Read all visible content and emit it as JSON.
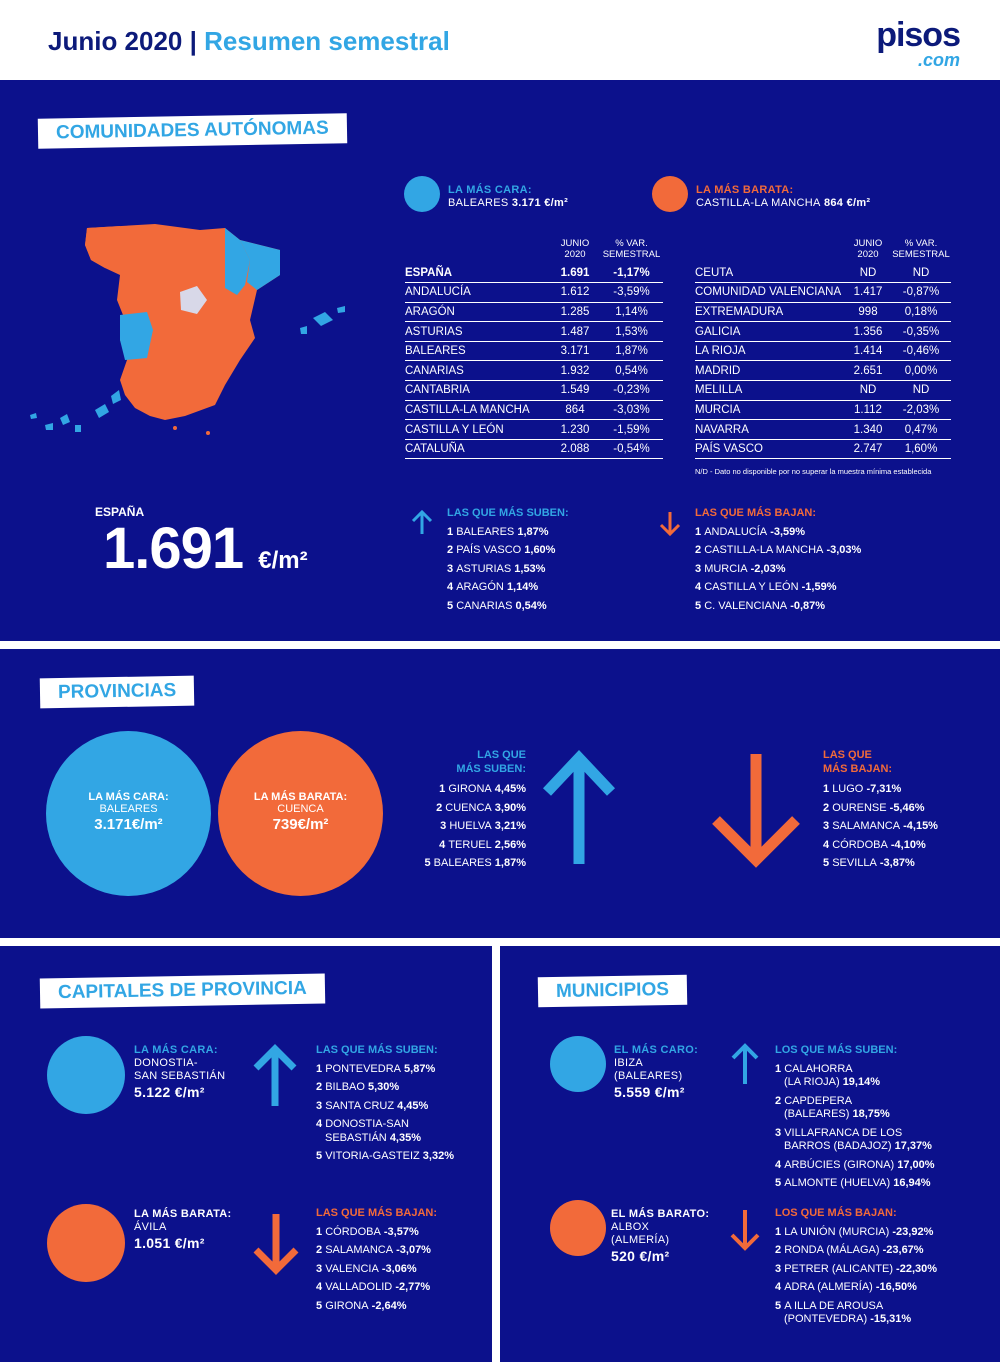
{
  "header": {
    "title": "Junio 2020 | ",
    "subtitle": "Resumen semestral",
    "logo_main": "pisos",
    "logo_sub": ".com"
  },
  "colors": {
    "navy": "#0c118c",
    "blue": "#32a6e4",
    "orange": "#f26a3a"
  },
  "comunidades": {
    "section_title": "COMUNIDADES AUTÓNOMAS",
    "cara_label": "LA MÁS CARA:",
    "cara_name": "BALEARES",
    "cara_value": "3.171 €/m²",
    "barata_label": "LA MÁS BARATA:",
    "barata_name": "CASTILLA-LA MANCHA",
    "barata_value": "864 €/m²",
    "col_headers": [
      "JUNIO 2020",
      "% VAR. SEMESTRAL"
    ],
    "table_left": [
      {
        "name": "ESPAÑA",
        "value": "1.691",
        "var": "-1,17%"
      },
      {
        "name": "ANDALUCÍA",
        "value": "1.612",
        "var": "-3,59%"
      },
      {
        "name": "ARAGÓN",
        "value": "1.285",
        "var": "1,14%"
      },
      {
        "name": "ASTURIAS",
        "value": "1.487",
        "var": "1,53%"
      },
      {
        "name": "BALEARES",
        "value": "3.171",
        "var": "1,87%"
      },
      {
        "name": "CANARIAS",
        "value": "1.932",
        "var": "0,54%"
      },
      {
        "name": "CANTABRIA",
        "value": "1.549",
        "var": "-0,23%"
      },
      {
        "name": "CASTILLA-LA MANCHA",
        "value": "864",
        "var": "-3,03%"
      },
      {
        "name": "CASTILLA Y LEÓN",
        "value": "1.230",
        "var": "-1,59%"
      },
      {
        "name": "CATALUÑA",
        "value": "2.088",
        "var": "-0,54%"
      }
    ],
    "table_right": [
      {
        "name": "CEUTA",
        "value": "ND",
        "var": "ND"
      },
      {
        "name": "COMUNIDAD VALENCIANA",
        "value": "1.417",
        "var": "-0,87%"
      },
      {
        "name": "EXTREMADURA",
        "value": "998",
        "var": "0,18%"
      },
      {
        "name": "GALICIA",
        "value": "1.356",
        "var": "-0,35%"
      },
      {
        "name": "LA RIOJA",
        "value": "1.414",
        "var": "-0,46%"
      },
      {
        "name": "MADRID",
        "value": "2.651",
        "var": "0,00%"
      },
      {
        "name": "MELILLA",
        "value": "ND",
        "var": "ND"
      },
      {
        "name": "MURCIA",
        "value": "1.112",
        "var": "-2,03%"
      },
      {
        "name": "NAVARRA",
        "value": "1.340",
        "var": "0,47%"
      },
      {
        "name": "PAÍS VASCO",
        "value": "2.747",
        "var": "1,60%"
      }
    ],
    "note": "N/D - Dato no disponible por no superar la muestra mínima establecida",
    "espana_label": "ESPAÑA",
    "espana_value": "1.691",
    "espana_unit": "€/m²",
    "suben_title": "LAS QUE MÁS SUBEN:",
    "suben": [
      {
        "rank": "1",
        "name": "BALEARES",
        "val": "1,87%"
      },
      {
        "rank": "2",
        "name": "PAÍS VASCO",
        "val": "1,60%"
      },
      {
        "rank": "3",
        "name": "ASTURIAS",
        "val": "1,53%"
      },
      {
        "rank": "4",
        "name": "ARAGÓN",
        "val": "1,14%"
      },
      {
        "rank": "5",
        "name": "CANARIAS",
        "val": "0,54%"
      }
    ],
    "bajan_title": "LAS QUE MÁS BAJAN:",
    "bajan": [
      {
        "rank": "1",
        "name": "ANDALUCÍA",
        "val": "-3,59%"
      },
      {
        "rank": "2",
        "name": "CASTILLA-LA MANCHA",
        "val": "-3,03%"
      },
      {
        "rank": "3",
        "name": "MURCIA",
        "val": "-2,03%"
      },
      {
        "rank": "4",
        "name": "CASTILLA Y LEÓN",
        "val": "-1,59%"
      },
      {
        "rank": "5",
        "name": "C. VALENCIANA",
        "val": "-0,87%"
      }
    ]
  },
  "provincias": {
    "section_title": "PROVINCIAS",
    "cara_label": "LA MÁS CARA:",
    "cara_name": "BALEARES",
    "cara_value": "3.171€/m²",
    "barata_label": "LA MÁS BARATA:",
    "barata_name": "CUENCA",
    "barata_value": "739€/m²",
    "suben_title_1": "LAS QUE",
    "suben_title_2": "MÁS SUBEN:",
    "suben": [
      {
        "rank": "1",
        "name": "GIRONA",
        "val": "4,45%"
      },
      {
        "rank": "2",
        "name": "CUENCA",
        "val": "3,90%"
      },
      {
        "rank": "3",
        "name": "HUELVA",
        "val": "3,21%"
      },
      {
        "rank": "4",
        "name": "TERUEL",
        "val": "2,56%"
      },
      {
        "rank": "5",
        "name": "BALEARES",
        "val": "1,87%"
      }
    ],
    "bajan_title_1": "LAS QUE",
    "bajan_title_2": "MÁS BAJAN:",
    "bajan": [
      {
        "rank": "1",
        "name": "LUGO",
        "val": "-7,31%"
      },
      {
        "rank": "2",
        "name": "OURENSE",
        "val": "-5,46%"
      },
      {
        "rank": "3",
        "name": "SALAMANCA",
        "val": "-4,15%"
      },
      {
        "rank": "4",
        "name": "CÓRDOBA",
        "val": "-4,10%"
      },
      {
        "rank": "5",
        "name": "SEVILLA",
        "val": "-3,87%"
      }
    ]
  },
  "capitales": {
    "section_title": "CAPITALES DE PROVINCIA",
    "cara_label": "LA MÁS CARA:",
    "cara_name_1": "DONOSTIA-",
    "cara_name_2": "SAN SEBASTIÁN",
    "cara_value": "5.122 €/m²",
    "barata_label": "LA MÁS BARATA:",
    "barata_name": "ÁVILA",
    "barata_value": "1.051 €/m²",
    "suben_title": "LAS QUE MÁS SUBEN:",
    "suben": [
      {
        "rank": "1",
        "name": "PONTEVEDRA",
        "val": "5,87%"
      },
      {
        "rank": "2",
        "name": "BILBAO",
        "val": "5,30%"
      },
      {
        "rank": "3",
        "name": "SANTA CRUZ",
        "val": "4,45%"
      },
      {
        "rank": "4",
        "name": "DONOSTIA-SAN",
        "name2": "SEBASTIÁN",
        "val": "4,35%"
      },
      {
        "rank": "5",
        "name": "VITORIA-GASTEIZ",
        "val": "3,32%"
      }
    ],
    "bajan_title": "LAS QUE MÁS BAJAN:",
    "bajan": [
      {
        "rank": "1",
        "name": "CÓRDOBA",
        "val": "-3,57%"
      },
      {
        "rank": "2",
        "name": "SALAMANCA",
        "val": "-3,07%"
      },
      {
        "rank": "3",
        "name": "VALENCIA",
        "val": "-3,06%"
      },
      {
        "rank": "4",
        "name": "VALLADOLID",
        "val": "-2,77%"
      },
      {
        "rank": "5",
        "name": "GIRONA",
        "val": "-2,64%"
      }
    ]
  },
  "municipios": {
    "section_title": "MUNICIPIOS",
    "cara_label": "EL MÁS CARO:",
    "cara_name_1": "IBIZA",
    "cara_name_2": "(BALEARES)",
    "cara_value": "5.559 €/m²",
    "barata_label": "EL MÁS BARATO:",
    "barata_name_1": "ALBOX",
    "barata_name_2": "(ALMERÍA)",
    "barata_value": "520 €/m²",
    "suben_title": "LOS QUE MÁS SUBEN:",
    "suben": [
      {
        "rank": "1",
        "name": "CALAHORRA",
        "name2": "(LA RIOJA)",
        "val": "19,14%"
      },
      {
        "rank": "2",
        "name": "CAPDEPERA",
        "name2": "(BALEARES)",
        "val": "18,75%"
      },
      {
        "rank": "3",
        "name": "VILLAFRANCA DE LOS",
        "name2": "BARROS (BADAJOZ)",
        "val": "17,37%"
      },
      {
        "rank": "4",
        "name": "ARBÚCIES (GIRONA)",
        "val": "17,00%"
      },
      {
        "rank": "5",
        "name": "ALMONTE (HUELVA)",
        "val": "16,94%"
      }
    ],
    "bajan_title": "LOS QUE MÁS BAJAN:",
    "bajan": [
      {
        "rank": "1",
        "name": "LA UNIÓN (MURCIA)",
        "val": "-23,92%"
      },
      {
        "rank": "2",
        "name": "RONDA (MÁLAGA)",
        "val": "-23,67%"
      },
      {
        "rank": "3",
        "name": "PETRER (ALICANTE)",
        "val": "-22,30%"
      },
      {
        "rank": "4",
        "name": "ADRA (ALMERÍA)",
        "val": "-16,50%"
      },
      {
        "rank": "5",
        "name": "A ILLA DE AROUSA",
        "name2": "(PONTEVEDRA)",
        "val": "-15,31%"
      }
    ]
  }
}
